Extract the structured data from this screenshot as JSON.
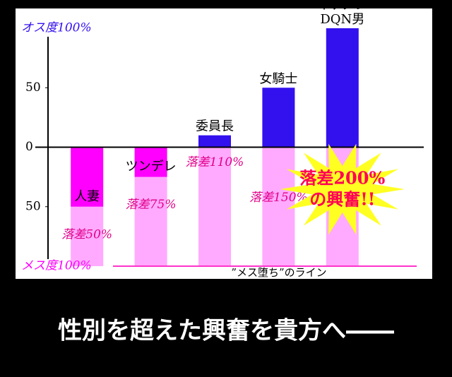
{
  "chart_data": {
    "type": "bar",
    "categories": [
      "人妻",
      "ツンデレ",
      "委員長",
      "女騎士",
      [
        "イケメン",
        "DQN男"
      ]
    ],
    "values": [
      -50,
      -25,
      10,
      50,
      100
    ],
    "drop_labels": [
      "落差50%",
      "落差75%",
      "落差110%",
      "落差150%"
    ],
    "burst": [
      "落差200%",
      "の興奮!!"
    ],
    "line_label": "”メス堕ち”のライン",
    "caption": "性別を超えた興奮を貴方へ――",
    "positive_color": "#3311ee",
    "negative_color": "#ff00ff",
    "drop_color": "#ffaaff",
    "ylim": [
      -100,
      100
    ],
    "yticks": [
      {
        "value": 100,
        "label": "オス度100%"
      },
      50,
      0,
      {
        "value": -50,
        "label": "50"
      },
      {
        "value": -100,
        "label": "メス度100%"
      }
    ]
  }
}
